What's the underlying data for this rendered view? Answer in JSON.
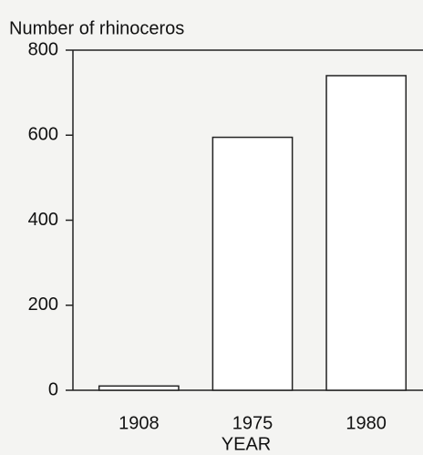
{
  "chart_data": {
    "type": "bar",
    "y_label": "Number of rhinoceros",
    "x_label": "YEAR",
    "categories": [
      "1908",
      "1975",
      "1980"
    ],
    "values": [
      10,
      595,
      740
    ],
    "color": "#ffffff",
    "ylim": [
      0,
      800
    ],
    "yticks": [
      0,
      200,
      400,
      600,
      800
    ]
  }
}
